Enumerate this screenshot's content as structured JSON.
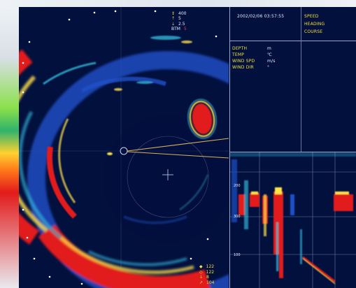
{
  "colors": {
    "background": "#02103e",
    "echo_red": "#e21b1b",
    "echo_yellow": "#ffe14a",
    "echo_cyan": "#38c7e8",
    "echo_blue": "#1e4fc8",
    "text_yellow": "#f2e23a",
    "text_red": "#ff3a3a",
    "grid_line": "#9aa6c8"
  },
  "sonar": {
    "range_readout": [
      {
        "icon": "range-arrow-icon",
        "value": "400",
        "color": "#f2e23a"
      },
      {
        "icon": "tilt-icon",
        "value": "5",
        "color": "#f2e23a"
      },
      {
        "icon": "tilt-down-icon",
        "value": "2.5",
        "color": "#f2e23a"
      },
      {
        "label": "BTM",
        "value": "5",
        "color": "#ff3a3a"
      }
    ],
    "bottom_readout": [
      {
        "icon": "target-icon",
        "value": "122"
      },
      {
        "icon": "marker-icon",
        "value": "122"
      },
      {
        "icon": "depth-icon",
        "value": "8"
      },
      {
        "icon": "bearing-icon",
        "value": "104"
      }
    ]
  },
  "info_panel": {
    "datetime": "2002/02/06 03:57:55",
    "speed_label": "SPEED",
    "heading_label": "HEADING",
    "course_label": "COURSE",
    "depth_label": "DEPTH",
    "depth_unit": "m",
    "temp_label": "TEMP",
    "temp_unit": "℃",
    "wind_spd_label": "WIND SPD",
    "wind_spd_unit": "m/s",
    "wind_dir_label": "WIND DIR",
    "wind_dir_unit": "°"
  },
  "echo_panel": {
    "depth_ticks": [
      "200",
      "300",
      "100"
    ]
  }
}
